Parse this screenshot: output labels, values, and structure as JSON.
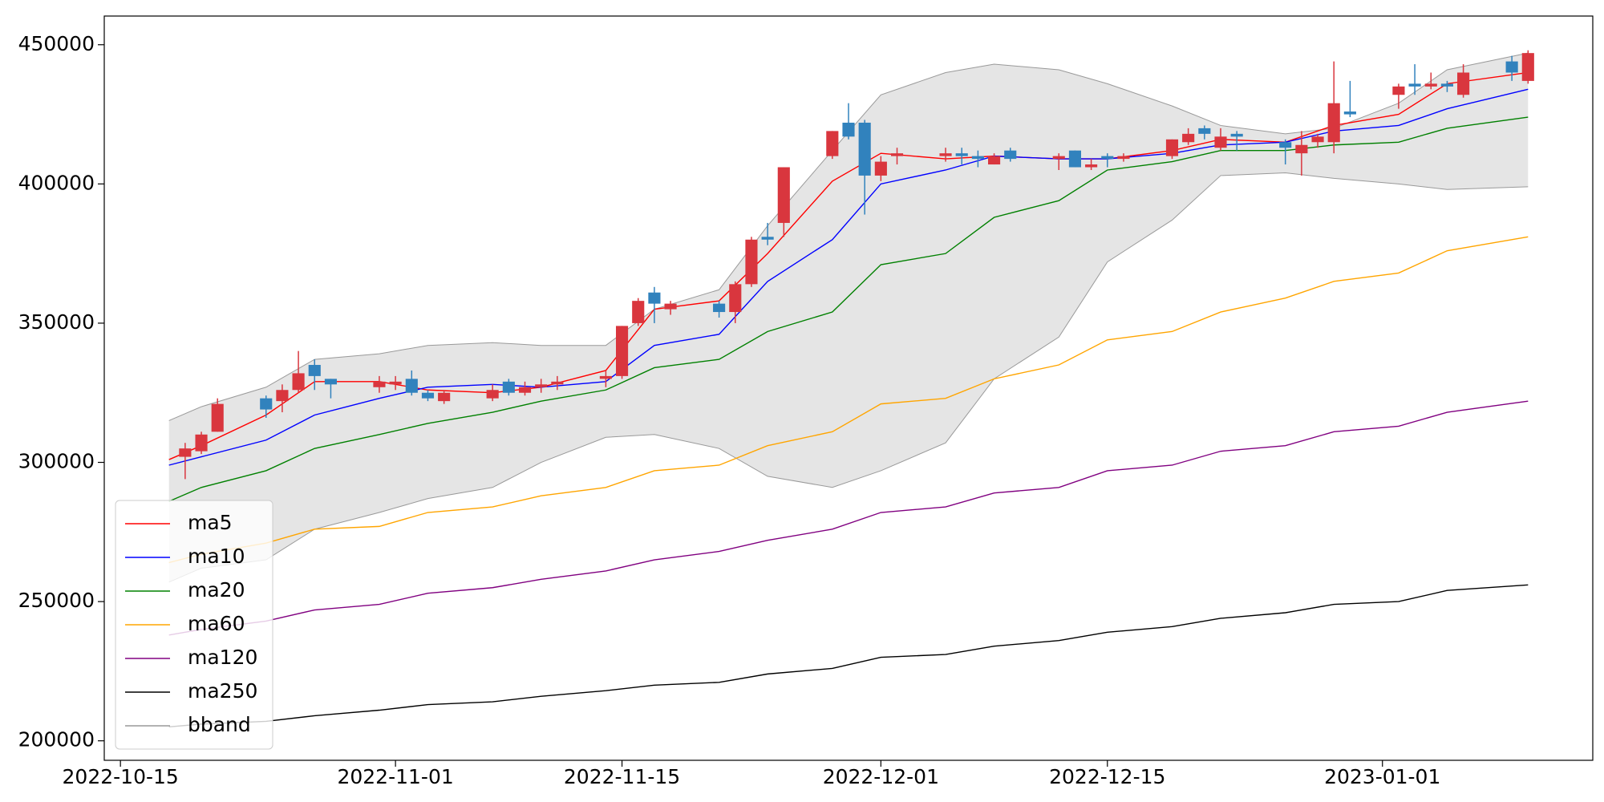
{
  "chart_data": {
    "type": "candlestick",
    "xlim": [
      "2022-10-14",
      "2023-01-14"
    ],
    "xticks": [
      "2022-10-15",
      "2022-11-01",
      "2022-11-15",
      "2022-12-01",
      "2022-12-15",
      "2023-01-01"
    ],
    "ylim": [
      193000,
      460300
    ],
    "yticks": [
      200000,
      250000,
      300000,
      350000,
      400000,
      450000
    ],
    "legend": "lower left",
    "candles": {
      "up_color": "#d9363e",
      "down_color": "#3182bd",
      "x": [
        "2022-10-19",
        "2022-10-20",
        "2022-10-21",
        "2022-10-24",
        "2022-10-25",
        "2022-10-26",
        "2022-10-27",
        "2022-10-28",
        "2022-10-31",
        "2022-11-01",
        "2022-11-02",
        "2022-11-03",
        "2022-11-04",
        "2022-11-07",
        "2022-11-08",
        "2022-11-09",
        "2022-11-10",
        "2022-11-11",
        "2022-11-14",
        "2022-11-15",
        "2022-11-16",
        "2022-11-17",
        "2022-11-18",
        "2022-11-21",
        "2022-11-22",
        "2022-11-23",
        "2022-11-24",
        "2022-11-25",
        "2022-11-28",
        "2022-11-29",
        "2022-11-30",
        "2022-12-01",
        "2022-12-02",
        "2022-12-05",
        "2022-12-06",
        "2022-12-07",
        "2022-12-08",
        "2022-12-09",
        "2022-12-12",
        "2022-12-13",
        "2022-12-14",
        "2022-12-15",
        "2022-12-16",
        "2022-12-19",
        "2022-12-20",
        "2022-12-21",
        "2022-12-22",
        "2022-12-23",
        "2022-12-26",
        "2022-12-27",
        "2022-12-28",
        "2022-12-29",
        "2022-12-30",
        "2023-01-02",
        "2023-01-03",
        "2023-01-04",
        "2023-01-05",
        "2023-01-06",
        "2023-01-09",
        "2023-01-10"
      ],
      "open": [
        302000,
        304000,
        311000,
        323000,
        322000,
        326000,
        335000,
        330000,
        327000,
        328000,
        330000,
        325000,
        322000,
        323000,
        329000,
        325000,
        327000,
        328000,
        330000,
        331000,
        350000,
        361000,
        355000,
        357000,
        354000,
        364000,
        381000,
        386000,
        410000,
        422000,
        422000,
        403000,
        410000,
        410000,
        411000,
        410000,
        407000,
        412000,
        409000,
        412000,
        406000,
        410000,
        409000,
        410000,
        415000,
        420000,
        413000,
        418000,
        415000,
        411000,
        415000,
        415000,
        426000,
        432000,
        436000,
        435000,
        436000,
        432000,
        444000,
        437000
      ],
      "high": [
        307000,
        311000,
        323000,
        324000,
        328000,
        340000,
        337000,
        330000,
        331000,
        331000,
        333000,
        326000,
        326000,
        328000,
        330000,
        329000,
        330000,
        331000,
        333000,
        349000,
        359000,
        363000,
        358000,
        358000,
        365000,
        381000,
        386000,
        406000,
        419000,
        429000,
        423000,
        410000,
        413000,
        413000,
        413000,
        412000,
        411000,
        413000,
        411000,
        412000,
        409000,
        411000,
        411000,
        416000,
        420000,
        421000,
        420000,
        419000,
        416000,
        419000,
        418000,
        444000,
        437000,
        436000,
        443000,
        440000,
        437000,
        443000,
        446000,
        448000
      ],
      "low": [
        294000,
        303000,
        311000,
        316000,
        318000,
        325000,
        326000,
        323000,
        325000,
        326000,
        324000,
        322000,
        321000,
        322000,
        324000,
        324000,
        325000,
        326000,
        327000,
        330000,
        349000,
        350000,
        353000,
        352000,
        350000,
        363000,
        378000,
        381000,
        409000,
        416000,
        389000,
        401000,
        407000,
        408000,
        407000,
        406000,
        407000,
        408000,
        405000,
        406000,
        405000,
        406000,
        408000,
        409000,
        414000,
        416000,
        412000,
        412000,
        407000,
        403000,
        413000,
        411000,
        424000,
        427000,
        432000,
        434000,
        433000,
        431000,
        437000,
        436000
      ],
      "close": [
        305000,
        310000,
        321000,
        319000,
        326000,
        332000,
        331000,
        328000,
        329000,
        329000,
        325000,
        323000,
        325000,
        326000,
        325000,
        327000,
        328000,
        329000,
        331000,
        349000,
        358000,
        357000,
        357000,
        354000,
        364000,
        380000,
        380000,
        406000,
        419000,
        417000,
        403000,
        408000,
        411000,
        411000,
        410000,
        409000,
        410000,
        409000,
        410000,
        406000,
        407000,
        409000,
        410000,
        416000,
        418000,
        418000,
        417000,
        417000,
        413000,
        414000,
        417000,
        429000,
        425000,
        435000,
        435000,
        436000,
        435000,
        440000,
        440000,
        447000
      ]
    },
    "line_x": [
      "2022-10-18",
      "2022-10-20",
      "2022-10-24",
      "2022-10-27",
      "2022-10-31",
      "2022-11-03",
      "2022-11-07",
      "2022-11-10",
      "2022-11-14",
      "2022-11-17",
      "2022-11-21",
      "2022-11-24",
      "2022-11-28",
      "2022-12-01",
      "2022-12-05",
      "2022-12-08",
      "2022-12-12",
      "2022-12-15",
      "2022-12-19",
      "2022-12-22",
      "2022-12-26",
      "2022-12-29",
      "2023-01-02",
      "2023-01-05",
      "2023-01-10"
    ],
    "series": [
      {
        "name": "ma5",
        "color": "#ff0000",
        "values": [
          301000,
          306000,
          317000,
          329000,
          329000,
          326000,
          325000,
          327000,
          333000,
          355000,
          358000,
          375000,
          401000,
          411000,
          409000,
          410000,
          409000,
          409000,
          412000,
          416000,
          415000,
          421000,
          425000,
          436000,
          440000
        ]
      },
      {
        "name": "ma10",
        "color": "#0000ff",
        "values": [
          299000,
          302000,
          308000,
          317000,
          323000,
          327000,
          328000,
          327000,
          329000,
          342000,
          346000,
          365000,
          380000,
          400000,
          405000,
          410000,
          409000,
          409000,
          411000,
          414000,
          415000,
          419000,
          421000,
          427000,
          434000
        ]
      },
      {
        "name": "ma20",
        "color": "#008000",
        "values": [
          286000,
          291000,
          297000,
          305000,
          310000,
          314000,
          318000,
          322000,
          326000,
          334000,
          337000,
          347000,
          354000,
          371000,
          375000,
          388000,
          394000,
          405000,
          408000,
          412000,
          412000,
          414000,
          415000,
          420000,
          424000
        ]
      },
      {
        "name": "ma60",
        "color": "#ffa500",
        "values": [
          264000,
          267000,
          271000,
          276000,
          277000,
          282000,
          284000,
          288000,
          291000,
          297000,
          299000,
          306000,
          311000,
          321000,
          323000,
          330000,
          335000,
          344000,
          347000,
          354000,
          359000,
          365000,
          368000,
          376000,
          381000
        ]
      },
      {
        "name": "ma120",
        "color": "#800080",
        "values": [
          238000,
          240000,
          243000,
          247000,
          249000,
          253000,
          255000,
          258000,
          261000,
          265000,
          268000,
          272000,
          276000,
          282000,
          284000,
          289000,
          291000,
          297000,
          299000,
          304000,
          306000,
          311000,
          313000,
          318000,
          322000
        ]
      },
      {
        "name": "ma250",
        "color": "#000000",
        "values": [
          205000,
          206000,
          207000,
          209000,
          211000,
          213000,
          214000,
          216000,
          218000,
          220000,
          221000,
          224000,
          226000,
          230000,
          231000,
          234000,
          236000,
          239000,
          241000,
          244000,
          246000,
          249000,
          250000,
          254000,
          256000
        ]
      }
    ],
    "bband": {
      "name": "bband",
      "color": "#999999",
      "fill": "#e5e5e5",
      "upper": [
        315000,
        320000,
        327000,
        337000,
        339000,
        342000,
        343000,
        342000,
        342000,
        355000,
        362000,
        385000,
        412000,
        432000,
        440000,
        443000,
        441000,
        436000,
        428000,
        421000,
        418000,
        420000,
        429000,
        441000,
        447000
      ],
      "lower": [
        257000,
        262000,
        265000,
        276000,
        282000,
        287000,
        291000,
        300000,
        309000,
        310000,
        305000,
        295000,
        291000,
        297000,
        307000,
        330000,
        345000,
        372000,
        387000,
        403000,
        404000,
        402000,
        400000,
        398000,
        399000
      ]
    }
  }
}
